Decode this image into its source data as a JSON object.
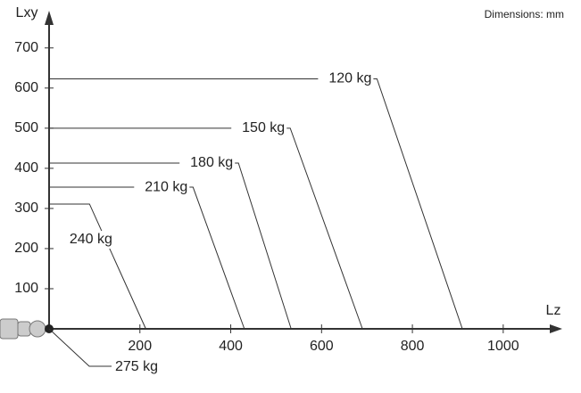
{
  "chart_data": {
    "type": "line",
    "note": "Dimensions: mm",
    "x_label": "Lz",
    "y_label": "Lxy",
    "xlim": [
      0,
      1130
    ],
    "ylim": [
      0,
      775
    ],
    "xticks": [
      200,
      400,
      600,
      800,
      1000
    ],
    "yticks": [
      100,
      200,
      300,
      400,
      500,
      600,
      700
    ],
    "color": "#333333",
    "series": [
      {
        "name": "120 kg",
        "x": [
          0,
          722,
          910
        ],
        "values": [
          623,
          623,
          0
        ]
      },
      {
        "name": "150 kg",
        "x": [
          0,
          531,
          690
        ],
        "values": [
          500,
          500,
          0
        ]
      },
      {
        "name": "180 kg",
        "x": [
          0,
          417,
          533
        ],
        "values": [
          413,
          413,
          0
        ]
      },
      {
        "name": "210 kg",
        "x": [
          0,
          317,
          430
        ],
        "values": [
          353,
          353,
          0
        ]
      },
      {
        "name": "240 kg",
        "x": [
          0,
          89,
          213
        ],
        "values": [
          311,
          311,
          0
        ]
      },
      {
        "name": "275 kg",
        "x": [
          0
        ],
        "values": [
          0
        ]
      }
    ]
  }
}
